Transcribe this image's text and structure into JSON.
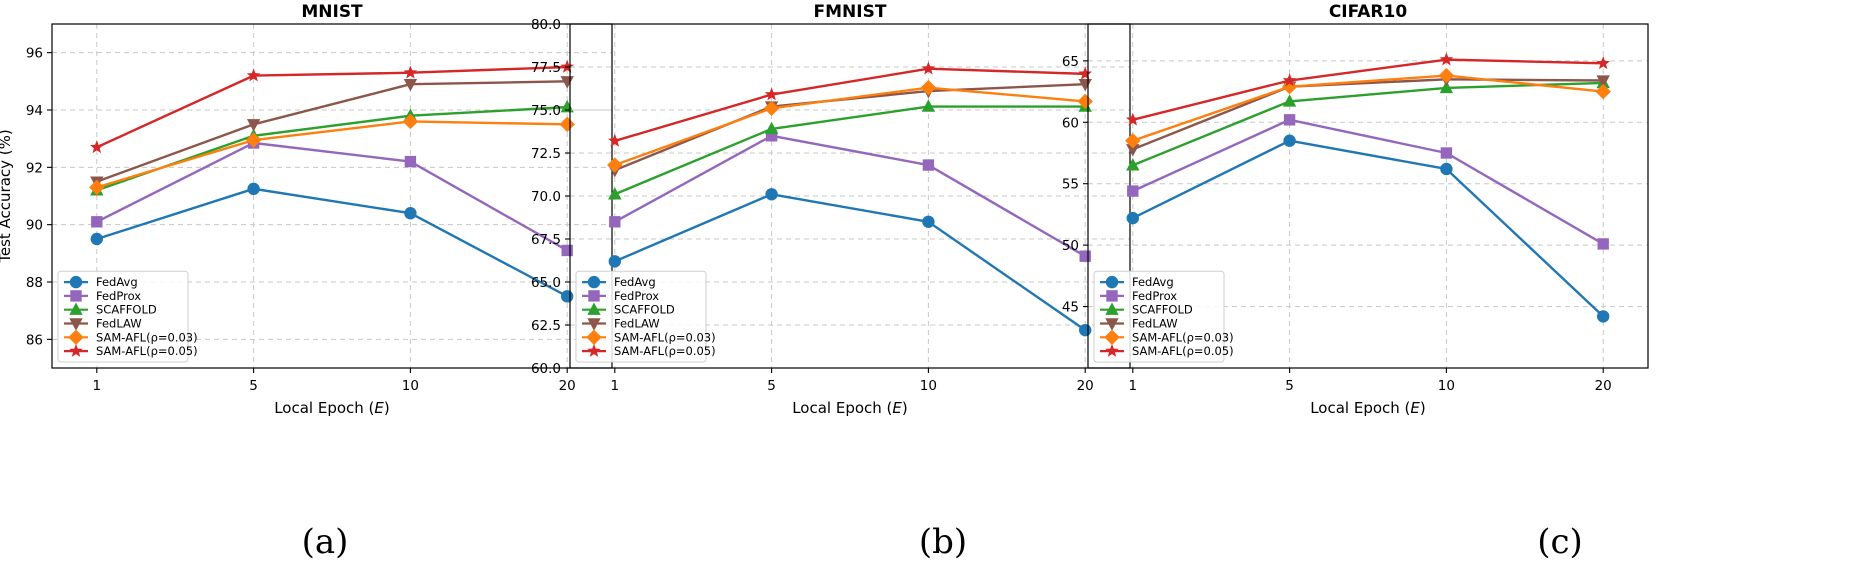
{
  "captions": [
    "(a)",
    "(b)",
    "(c)"
  ],
  "chart_data": [
    {
      "type": "line",
      "title": "MNIST",
      "xlabel": "Local Epoch (E)",
      "ylabel": "Test Accuracy (%)",
      "x": [
        1,
        5,
        10,
        20
      ],
      "x_scale": "categorical",
      "ylim": [
        85,
        97
      ],
      "yticks": [
        86,
        88,
        90,
        92,
        94,
        96
      ],
      "ytick_labels": [
        "86",
        "88",
        "90",
        "92",
        "94",
        "96"
      ],
      "grid": true,
      "legend_position": "lower-left",
      "series": [
        {
          "name": "FedAvg",
          "color": "#1f77b4",
          "marker": "circle",
          "values": [
            89.5,
            91.25,
            90.4,
            87.5
          ]
        },
        {
          "name": "FedProx",
          "color": "#9467bd",
          "marker": "square",
          "values": [
            90.1,
            92.85,
            92.2,
            89.1
          ]
        },
        {
          "name": "SCAFFOLD",
          "color": "#2ca02c",
          "marker": "triangle-up",
          "values": [
            91.2,
            93.1,
            93.8,
            94.1
          ]
        },
        {
          "name": "FedLAW",
          "color": "#8c564b",
          "marker": "triangle-down",
          "values": [
            91.5,
            93.5,
            94.9,
            95.0
          ]
        },
        {
          "name": "SAM-AFL(ρ=0.03)",
          "color": "#ff7f0e",
          "marker": "diamond",
          "values": [
            91.3,
            92.95,
            93.6,
            93.5
          ]
        },
        {
          "name": "SAM-AFL(ρ=0.05)",
          "color": "#d62728",
          "marker": "star",
          "values": [
            92.7,
            95.2,
            95.3,
            95.5
          ]
        }
      ]
    },
    {
      "type": "line",
      "title": "FMNIST",
      "xlabel": "Local Epoch (E)",
      "ylabel": "",
      "x": [
        1,
        5,
        10,
        20
      ],
      "x_scale": "categorical",
      "ylim": [
        60,
        80
      ],
      "yticks": [
        60.0,
        62.5,
        65.0,
        67.5,
        70.0,
        72.5,
        75.0,
        77.5,
        80.0
      ],
      "ytick_labels": [
        "60.0",
        "62.5",
        "65.0",
        "67.5",
        "70.0",
        "72.5",
        "75.0",
        "77.5",
        "80.0"
      ],
      "grid": true,
      "legend_position": "lower-left",
      "series": [
        {
          "name": "FedAvg",
          "color": "#1f77b4",
          "marker": "circle",
          "values": [
            66.2,
            70.1,
            68.5,
            62.2
          ]
        },
        {
          "name": "FedProx",
          "color": "#9467bd",
          "marker": "square",
          "values": [
            68.5,
            73.5,
            71.8,
            66.5
          ]
        },
        {
          "name": "SCAFFOLD",
          "color": "#2ca02c",
          "marker": "triangle-up",
          "values": [
            70.1,
            73.9,
            75.2,
            75.2
          ]
        },
        {
          "name": "FedLAW",
          "color": "#8c564b",
          "marker": "triangle-down",
          "values": [
            71.5,
            75.2,
            76.1,
            76.5
          ]
        },
        {
          "name": "SAM-AFL(ρ=0.03)",
          "color": "#ff7f0e",
          "marker": "diamond",
          "values": [
            71.8,
            75.1,
            76.3,
            75.5
          ]
        },
        {
          "name": "SAM-AFL(ρ=0.05)",
          "color": "#d62728",
          "marker": "star",
          "values": [
            73.2,
            75.9,
            77.4,
            77.1
          ]
        }
      ]
    },
    {
      "type": "line",
      "title": "CIFAR10",
      "xlabel": "Local Epoch (E)",
      "ylabel": "",
      "x": [
        1,
        5,
        10,
        20
      ],
      "x_scale": "categorical",
      "ylim": [
        40,
        68
      ],
      "yticks": [
        45,
        50,
        55,
        60,
        65
      ],
      "ytick_labels": [
        "45",
        "50",
        "55",
        "60",
        "65"
      ],
      "grid": true,
      "legend_position": "lower-left",
      "series": [
        {
          "name": "FedAvg",
          "color": "#1f77b4",
          "marker": "circle",
          "values": [
            52.2,
            58.5,
            56.2,
            44.2
          ]
        },
        {
          "name": "FedProx",
          "color": "#9467bd",
          "marker": "square",
          "values": [
            54.4,
            60.2,
            57.5,
            50.1
          ]
        },
        {
          "name": "SCAFFOLD",
          "color": "#2ca02c",
          "marker": "triangle-up",
          "values": [
            56.5,
            61.7,
            62.8,
            63.2
          ]
        },
        {
          "name": "FedLAW",
          "color": "#8c564b",
          "marker": "triangle-down",
          "values": [
            57.8,
            62.9,
            63.5,
            63.4
          ]
        },
        {
          "name": "SAM-AFL(ρ=0.03)",
          "color": "#ff7f0e",
          "marker": "diamond",
          "values": [
            58.5,
            62.9,
            63.8,
            62.5
          ]
        },
        {
          "name": "SAM-AFL(ρ=0.05)",
          "color": "#d62728",
          "marker": "star",
          "values": [
            60.2,
            63.4,
            65.1,
            64.8
          ]
        }
      ]
    }
  ]
}
